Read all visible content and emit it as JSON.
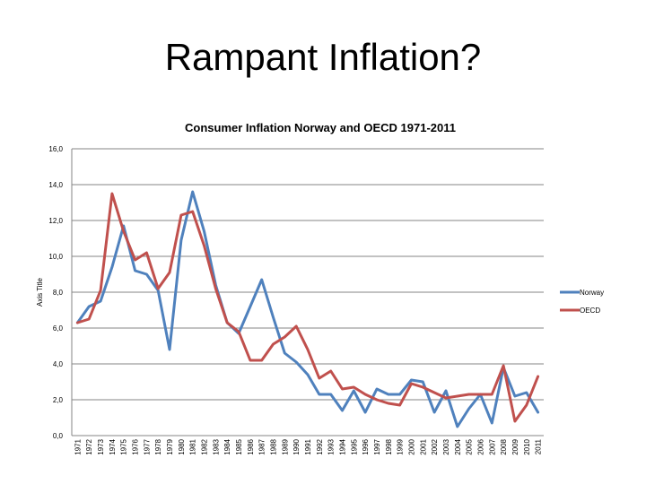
{
  "slide": {
    "title": "Rampant Inflation?"
  },
  "chart_data": {
    "type": "line",
    "title": "Consumer Inflation Norway and OECD 1971-2011",
    "xlabel": "",
    "ylabel": "Axis Title",
    "ylim": [
      0,
      16
    ],
    "ytick_step": 2,
    "ytick_labels": [
      "0,0",
      "2,0",
      "4,0",
      "6,0",
      "8,0",
      "10,0",
      "12,0",
      "14,0",
      "16,0"
    ],
    "grid": true,
    "legend_position": "right",
    "categories": [
      "1971",
      "1972",
      "1973",
      "1974",
      "1975",
      "1976",
      "1977",
      "1978",
      "1979",
      "1980",
      "1981",
      "1982",
      "1983",
      "1984",
      "1985",
      "1986",
      "1987",
      "1988",
      "1989",
      "1990",
      "1991",
      "1992",
      "1993",
      "1994",
      "1995",
      "1996",
      "1997",
      "1998",
      "1999",
      "2000",
      "2001",
      "2002",
      "2003",
      "2004",
      "2005",
      "2006",
      "2007",
      "2008",
      "2009",
      "2010",
      "2011"
    ],
    "series": [
      {
        "name": "Norway",
        "color": "#4f81bd",
        "values": [
          6.3,
          7.2,
          7.5,
          9.4,
          11.7,
          9.2,
          9.0,
          8.1,
          4.8,
          10.9,
          13.6,
          11.4,
          8.4,
          6.3,
          5.7,
          7.2,
          8.7,
          6.6,
          4.6,
          4.1,
          3.4,
          2.3,
          2.3,
          1.4,
          2.5,
          1.3,
          2.6,
          2.3,
          2.3,
          3.1,
          3.0,
          1.3,
          2.5,
          0.5,
          1.5,
          2.3,
          0.7,
          3.8,
          2.2,
          2.4,
          1.3
        ]
      },
      {
        "name": "OECD",
        "color": "#c0504d",
        "values": [
          6.3,
          6.5,
          8.1,
          13.5,
          11.4,
          9.8,
          10.2,
          8.2,
          9.1,
          12.3,
          12.5,
          10.6,
          8.2,
          6.3,
          5.8,
          4.2,
          4.2,
          5.1,
          5.5,
          6.1,
          4.8,
          3.2,
          3.6,
          2.6,
          2.7,
          2.3,
          2.0,
          1.8,
          1.7,
          2.9,
          2.7,
          2.4,
          2.1,
          2.2,
          2.3,
          2.3,
          2.3,
          3.9,
          0.8,
          1.7,
          3.3
        ]
      }
    ]
  }
}
